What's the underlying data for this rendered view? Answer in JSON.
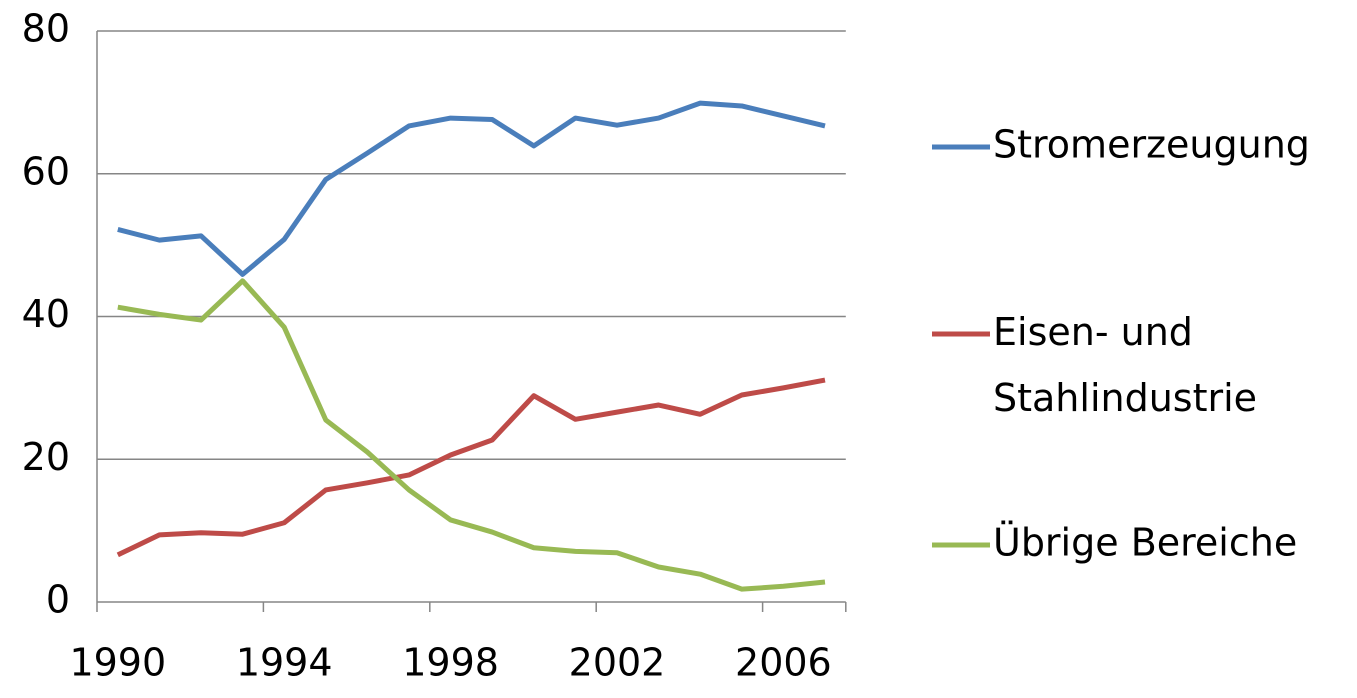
{
  "chart_data": {
    "type": "line",
    "categories": [
      "1990",
      null,
      null,
      null,
      "1994",
      null,
      null,
      null,
      "1998",
      null,
      null,
      null,
      "2002",
      null,
      null,
      null,
      "2006",
      null
    ],
    "series": [
      {
        "name": "Stromerzeugung",
        "color": "#4a7ebb",
        "values": [
          52.2,
          50.7,
          51.3,
          45.9,
          50.8,
          59.2,
          62.9,
          66.7,
          67.8,
          67.6,
          63.9,
          67.8,
          66.8,
          67.8,
          69.9,
          69.5,
          68.1,
          66.7
        ]
      },
      {
        "name": "Eisen- und Stahlindustrie",
        "color": "#be4b48",
        "values": [
          6.6,
          9.4,
          9.7,
          9.5,
          11.1,
          15.7,
          16.7,
          17.8,
          20.6,
          22.7,
          28.9,
          25.6,
          26.6,
          27.6,
          26.3,
          29.0,
          30.0,
          31.1
        ]
      },
      {
        "name": "Übrige Bereiche",
        "color": "#98b954",
        "values": [
          41.3,
          40.3,
          39.5,
          45.0,
          38.5,
          25.5,
          21.0,
          15.7,
          11.5,
          9.8,
          7.6,
          7.1,
          6.9,
          4.9,
          3.9,
          1.8,
          2.2,
          2.8
        ]
      }
    ],
    "ylim": [
      0,
      80
    ],
    "yticks": [
      0,
      20,
      40,
      60,
      80
    ],
    "grid": true,
    "legend": "right"
  }
}
